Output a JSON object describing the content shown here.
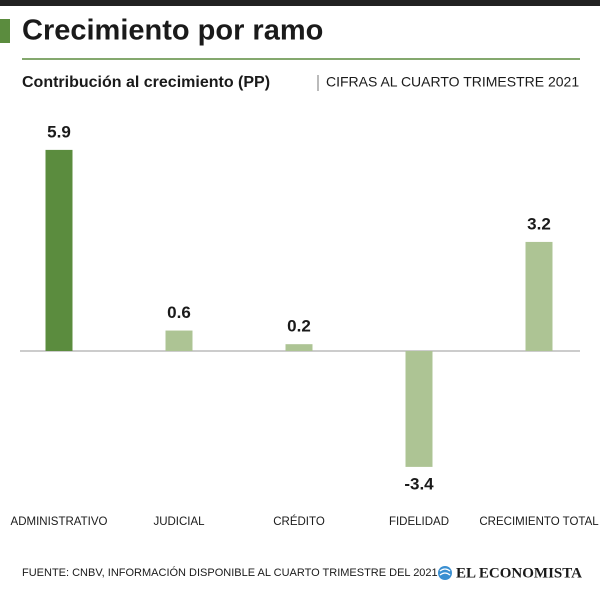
{
  "chart_data": {
    "type": "bar",
    "title": "Crecimiento por ramo",
    "subtitle": "Contribución al crecimiento (PP)",
    "subtitle_note": "CIFRAS AL CUARTO TRIMESTRE 2021",
    "categories": [
      "ADMINISTRATIVO",
      "JUDICIAL",
      "CRÉDITO",
      "FIDELIDAD",
      "CRECIMIENTO TOTAL"
    ],
    "values": [
      5.9,
      0.6,
      0.2,
      -3.4,
      3.2
    ],
    "colors": [
      "#5b8c3e",
      "#adc494",
      "#adc494",
      "#adc494",
      "#adc494"
    ],
    "source": "FUENTE: CNBV, INFORMACIÓN DISPONIBLE AL CUARTO TRIMESTRE DEL 2021",
    "brand": "EL ECONOMISTA"
  }
}
